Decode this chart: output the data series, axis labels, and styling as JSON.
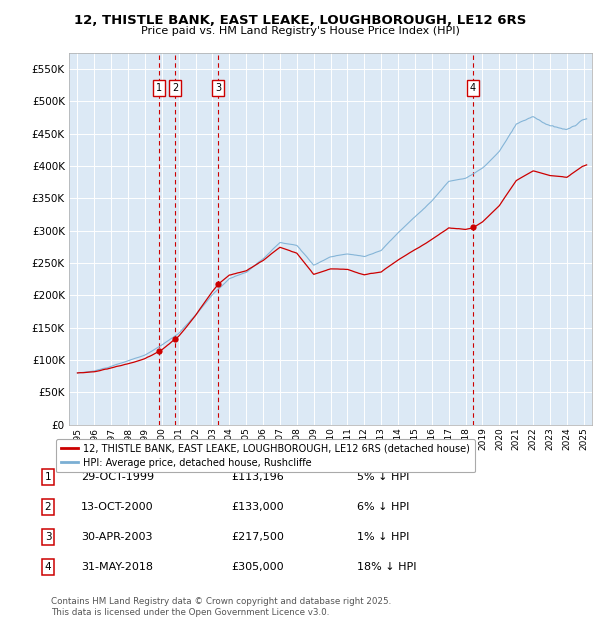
{
  "title": "12, THISTLE BANK, EAST LEAKE, LOUGHBOROUGH, LE12 6RS",
  "subtitle": "Price paid vs. HM Land Registry's House Price Index (HPI)",
  "ylim": [
    0,
    575000
  ],
  "xlim_min": 1994.5,
  "xlim_max": 2025.5,
  "bg_color": "#dce9f5",
  "legend_label_red": "12, THISTLE BANK, EAST LEAKE, LOUGHBOROUGH, LE12 6RS (detached house)",
  "legend_label_blue": "HPI: Average price, detached house, Rushcliffe",
  "footnote": "Contains HM Land Registry data © Crown copyright and database right 2025.\nThis data is licensed under the Open Government Licence v3.0.",
  "sales": [
    {
      "num": 1,
      "date": "29-OCT-1999",
      "price": 113196,
      "pct": "5%",
      "dir": "↓",
      "year": 1999.83
    },
    {
      "num": 2,
      "date": "13-OCT-2000",
      "price": 133000,
      "pct": "6%",
      "dir": "↓",
      "year": 2000.79
    },
    {
      "num": 3,
      "date": "30-APR-2003",
      "price": 217500,
      "pct": "1%",
      "dir": "↓",
      "year": 2003.33
    },
    {
      "num": 4,
      "date": "31-MAY-2018",
      "price": 305000,
      "pct": "18%",
      "dir": "↓",
      "year": 2018.42
    }
  ],
  "hpi_data": {
    "years": [
      1995,
      1996,
      1997,
      1998,
      1999,
      2000,
      2001,
      2002,
      2003,
      2004,
      2005,
      2006,
      2007,
      2008,
      2009,
      2010,
      2011,
      2012,
      2013,
      2014,
      2015,
      2016,
      2017,
      2018,
      2019,
      2020,
      2021,
      2022,
      2023,
      2024,
      2025
    ],
    "base_values": [
      80000,
      83000,
      90000,
      98000,
      107000,
      122000,
      140000,
      168000,
      200000,
      225000,
      235000,
      255000,
      280000,
      275000,
      245000,
      258000,
      262000,
      258000,
      268000,
      295000,
      320000,
      345000,
      375000,
      380000,
      395000,
      420000,
      460000,
      470000,
      455000,
      445000,
      460000
    ],
    "noise_scale": 4000
  },
  "price_paid_anchors": [
    [
      1995.0,
      80000
    ],
    [
      1999.83,
      113196
    ],
    [
      2000.79,
      133000
    ],
    [
      2003.33,
      217500
    ],
    [
      2018.42,
      305000
    ],
    [
      2025.17,
      400000
    ]
  ]
}
